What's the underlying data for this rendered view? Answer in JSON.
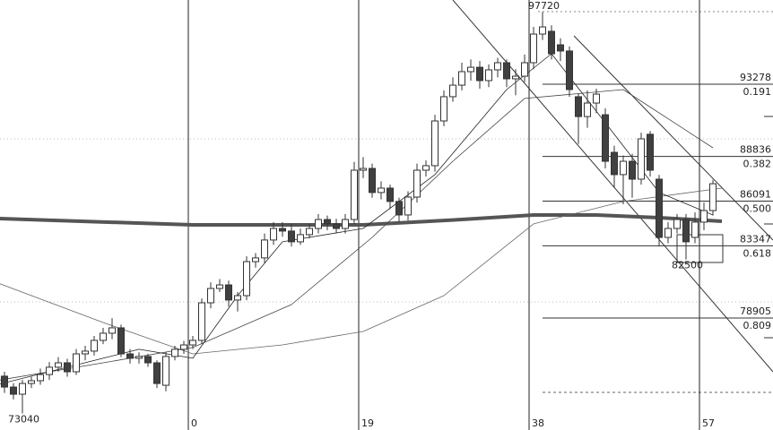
{
  "chart_data": {
    "type": "candlestick",
    "xlim": [
      -21.5,
      64.7
    ],
    "ylim": [
      72020,
      98455
    ],
    "xticks": [
      0,
      19,
      38,
      57
    ],
    "candles": {
      "x": [
        -21,
        -20,
        -19,
        -18,
        -17,
        -16,
        -15,
        -14,
        -13,
        -12,
        -11,
        -10,
        -9,
        -8,
        -7,
        -6,
        -5,
        -4,
        -3,
        -2,
        -1,
        0,
        1,
        2,
        3,
        4,
        5,
        6,
        7,
        8,
        9,
        10,
        11,
        12,
        13,
        14,
        15,
        16,
        17,
        18,
        19,
        20,
        21,
        22,
        23,
        24,
        25,
        26,
        27,
        28,
        29,
        30,
        31,
        32,
        33,
        34,
        35,
        36,
        37,
        38,
        39,
        40,
        41,
        42,
        43,
        44,
        45,
        46,
        47,
        48,
        49,
        50,
        51,
        52,
        53,
        54,
        55,
        56,
        57,
        58
      ],
      "open": [
        75330,
        74660,
        74220,
        74880,
        75050,
        75430,
        75880,
        76150,
        75600,
        76700,
        76870,
        77530,
        77970,
        78300,
        76700,
        76430,
        76540,
        76150,
        74770,
        76540,
        76980,
        77250,
        77530,
        79840,
        80720,
        80940,
        80010,
        80280,
        82370,
        82600,
        83700,
        84410,
        84250,
        83590,
        84030,
        84410,
        84960,
        84690,
        84410,
        84960,
        87990,
        88100,
        86620,
        86890,
        86070,
        85240,
        86340,
        87990,
        88270,
        91020,
        92510,
        93220,
        94050,
        94320,
        93500,
        94160,
        94600,
        93610,
        93770,
        94600,
        96360,
        96530,
        95700,
        95320,
        92510,
        91290,
        92120,
        91400,
        89090,
        87720,
        88540,
        87440,
        90200,
        87440,
        83860,
        84410,
        84960,
        83860,
        84800,
        85510
      ],
      "high": [
        75600,
        74900,
        75100,
        75300,
        75800,
        76200,
        76500,
        76400,
        77000,
        77200,
        77800,
        78300,
        78900,
        78500,
        77000,
        76800,
        76700,
        76300,
        76800,
        77200,
        77500,
        77800,
        80100,
        81100,
        81300,
        81200,
        80500,
        82700,
        82900,
        84100,
        84800,
        84800,
        84700,
        84400,
        84700,
        85300,
        85200,
        85000,
        85300,
        88500,
        88800,
        88400,
        87300,
        87100,
        86300,
        86700,
        88400,
        88600,
        91400,
        92900,
        93700,
        94600,
        94800,
        94700,
        94500,
        94900,
        94800,
        94200,
        95100,
        96800,
        97720,
        96900,
        96100,
        95600,
        92700,
        92900,
        93000,
        91800,
        89500,
        88900,
        89000,
        90300,
        90400,
        87700,
        84800,
        85300,
        85300,
        85400,
        86000,
        87400
      ],
      "low": [
        74300,
        73900,
        73040,
        74600,
        74800,
        75100,
        75600,
        75300,
        75400,
        76300,
        76600,
        77300,
        77600,
        76500,
        76100,
        76100,
        75900,
        74600,
        74400,
        76300,
        76700,
        77000,
        77300,
        79500,
        80500,
        79600,
        79300,
        80000,
        82000,
        82300,
        83400,
        83900,
        83300,
        83400,
        83800,
        84100,
        84300,
        84100,
        84100,
        84700,
        87500,
        86300,
        86200,
        85600,
        84800,
        84900,
        86000,
        87600,
        87900,
        90700,
        92200,
        92900,
        93500,
        93000,
        93100,
        93700,
        93100,
        92600,
        93400,
        94200,
        96000,
        94800,
        94700,
        92500,
        89600,
        90600,
        91500,
        88100,
        86900,
        85900,
        86300,
        87100,
        87600,
        83300,
        83500,
        84100,
        82500,
        83500,
        84300,
        85200
      ],
      "close": [
        74660,
        74220,
        74880,
        75050,
        75430,
        75880,
        76150,
        75600,
        76700,
        76870,
        77530,
        77970,
        78300,
        76700,
        76430,
        76540,
        76150,
        74880,
        76540,
        76980,
        77250,
        77530,
        79840,
        80720,
        80940,
        80010,
        80280,
        82370,
        82600,
        83700,
        84410,
        84250,
        83590,
        84030,
        84410,
        84960,
        84690,
        84410,
        84960,
        87990,
        88100,
        86620,
        86890,
        86070,
        85240,
        86340,
        87990,
        88270,
        91020,
        92510,
        93220,
        94050,
        94320,
        93500,
        94160,
        94600,
        93610,
        93770,
        94600,
        96360,
        96800,
        95150,
        95320,
        92950,
        91290,
        92120,
        92670,
        88540,
        87720,
        88540,
        87440,
        89920,
        87990,
        83860,
        84410,
        84960,
        83590,
        84800,
        85510,
        87160
      ],
      "up_color": "#ffffff",
      "down_color": "#404040",
      "edge_color": "#333333"
    },
    "lines": [
      {
        "color": "#555555",
        "width": 4,
        "x": [
          -22,
          0,
          19,
          30,
          38,
          45,
          52,
          59
        ],
        "values": [
          85020,
          84630,
          84630,
          84960,
          85240,
          85240,
          85070,
          84850
        ]
      },
      {
        "color": "#666666",
        "width": 0.8,
        "x": [
          -22,
          -10,
          0,
          10,
          19,
          28,
          38,
          48,
          59
        ],
        "values": [
          81110,
          78630,
          76700,
          77250,
          78080,
          80280,
          84690,
          86070,
          86890
        ]
      },
      {
        "color": "#444444",
        "width": 0.8,
        "x": [
          -22,
          -10,
          0,
          11,
          20,
          29,
          37,
          48,
          58
        ],
        "values": [
          75050,
          76150,
          77090,
          79730,
          83860,
          88540,
          92400,
          92950,
          89370
        ]
      },
      {
        "color": "#222222",
        "width": 0.8,
        "x": [
          -22,
          -10,
          -6,
          0,
          5,
          10,
          19,
          27,
          35,
          40,
          47,
          52,
          58
        ],
        "values": [
          74780,
          76430,
          76980,
          76430,
          80280,
          83590,
          84410,
          87720,
          92950,
          95150,
          90200,
          86620,
          85240
        ]
      }
    ],
    "fib_levels": [
      {
        "value": 93278,
        "ratio": 0.191
      },
      {
        "value": 88836,
        "ratio": 0.382
      },
      {
        "value": 86091,
        "ratio": {
          "value": 0.5,
          "label": "0.500"
        }
      },
      {
        "value": 83347,
        "ratio": 0.618
      },
      {
        "value": 78905,
        "ratio": 0.809
      }
    ],
    "annotations": [
      {
        "value": 97720,
        "x": 39
      },
      {
        "value": 82500,
        "x": 55
      },
      {
        "value": 73040,
        "x": -19
      }
    ]
  }
}
